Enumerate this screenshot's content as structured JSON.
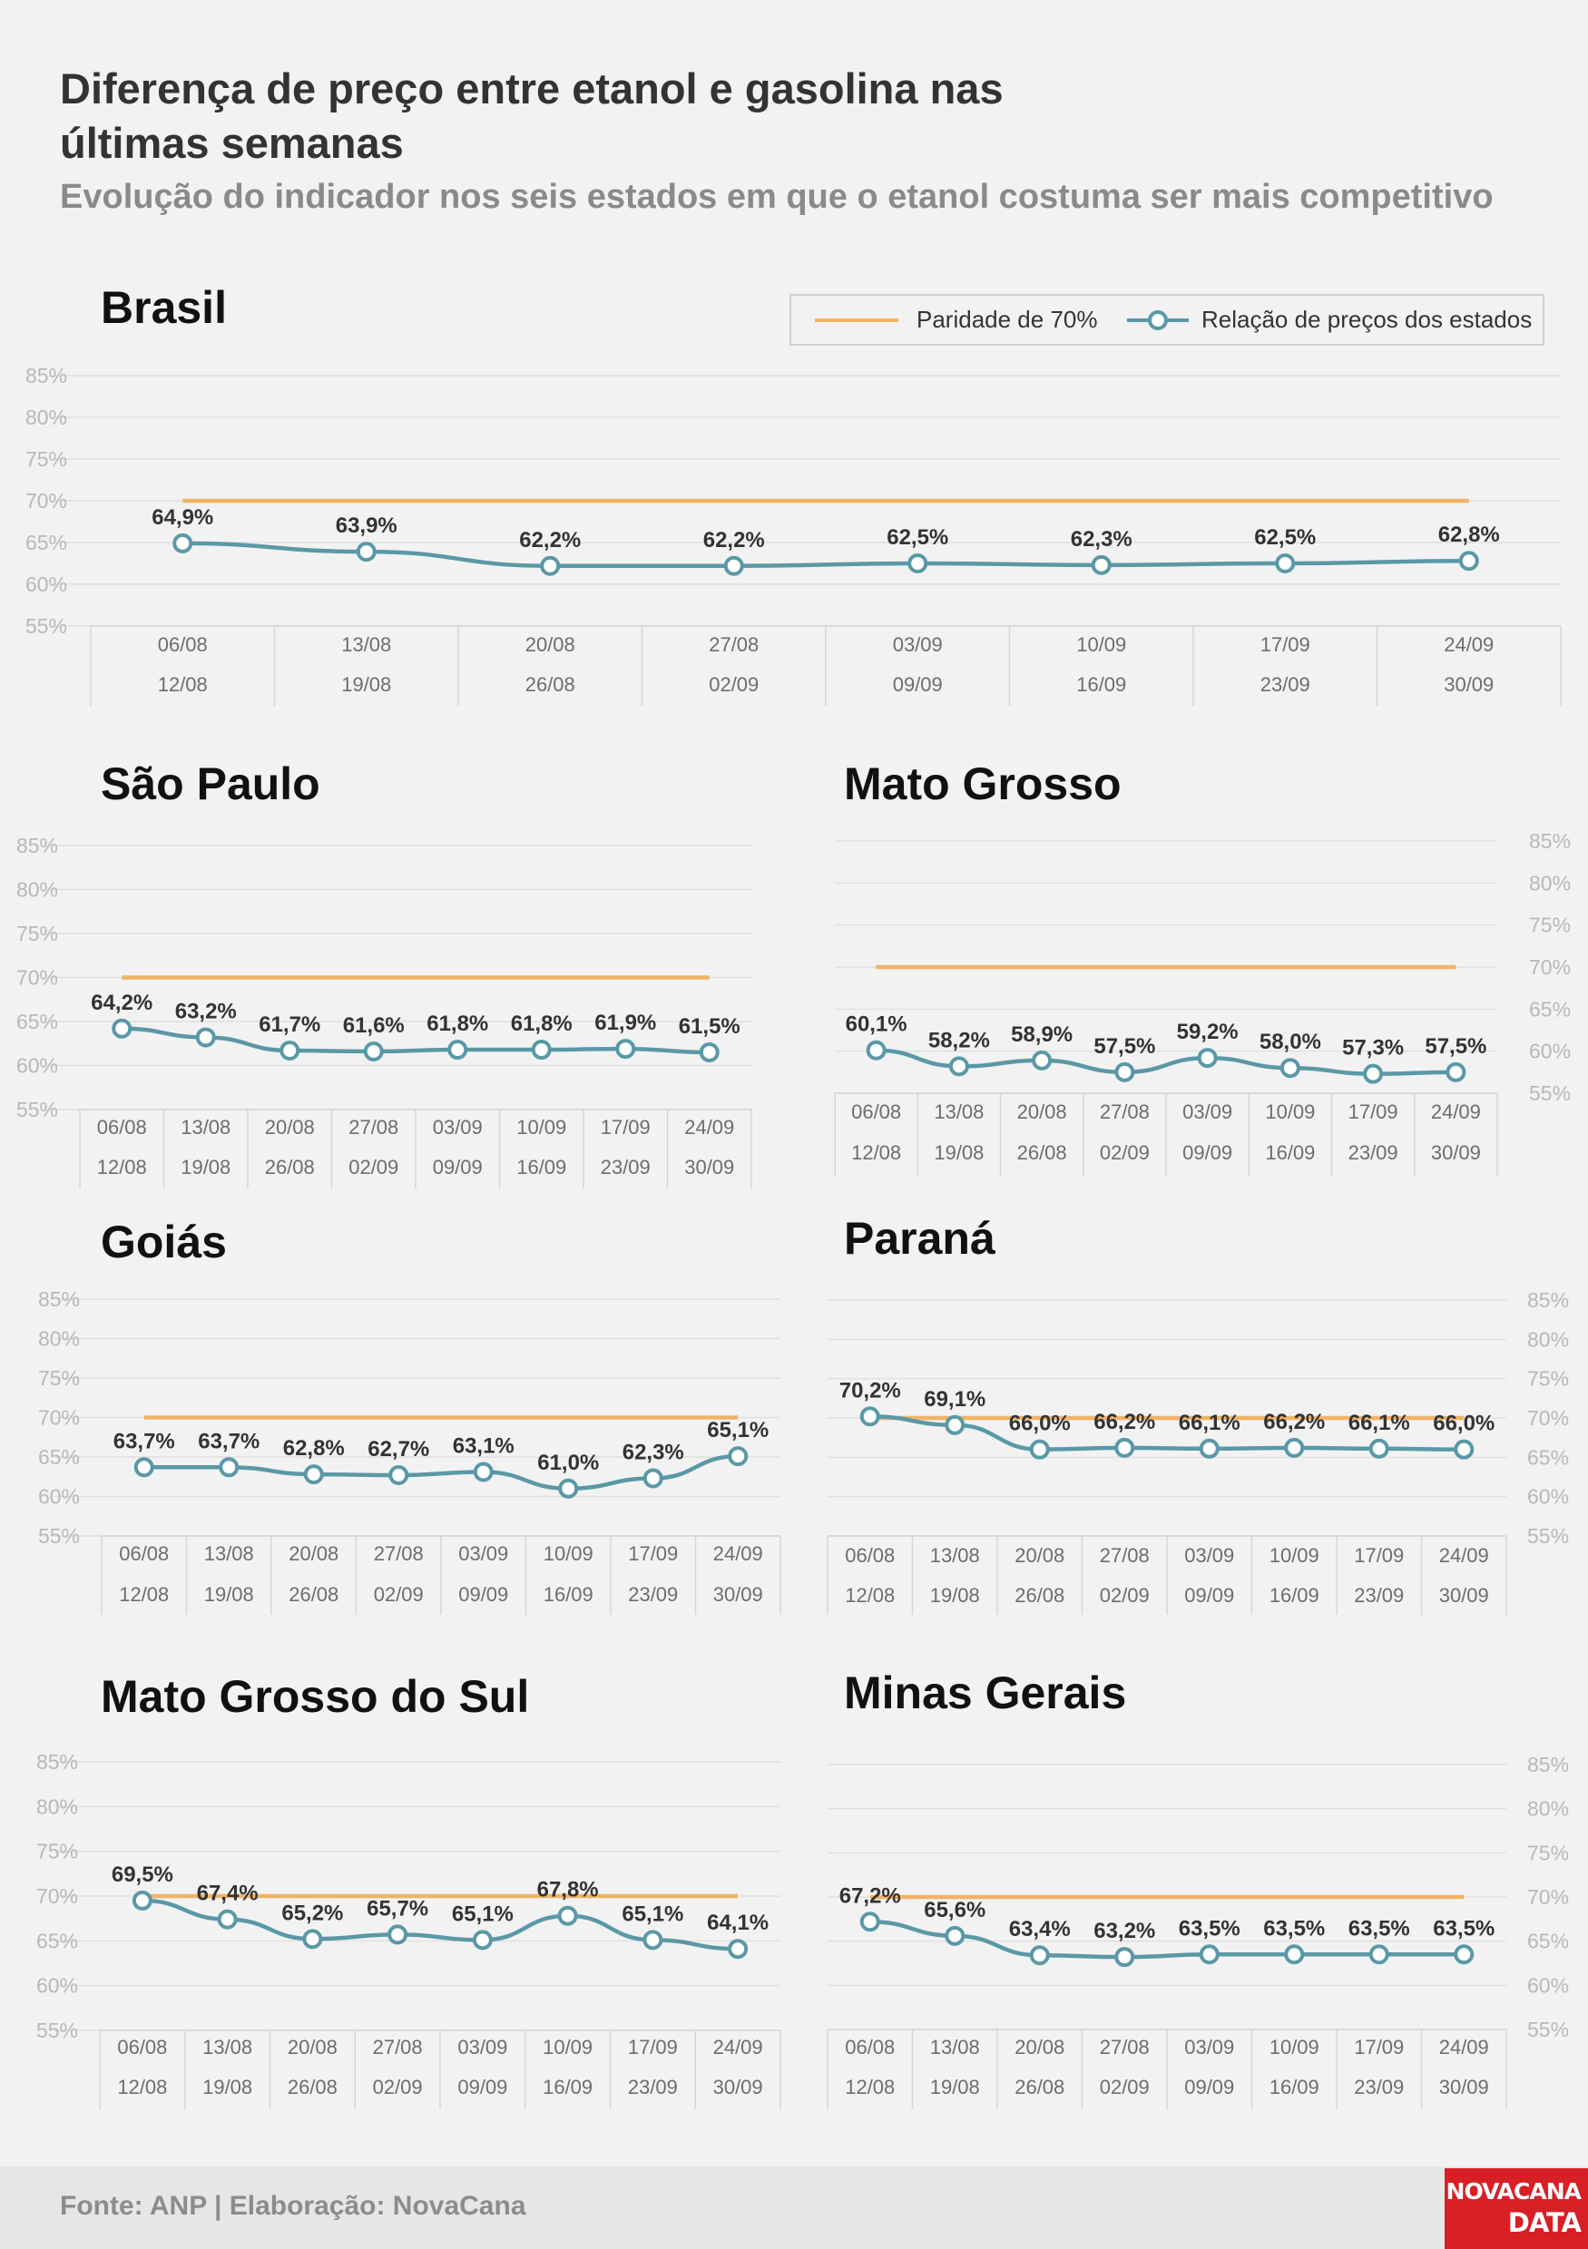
{
  "header": {
    "title_line1": "Diferença de preço entre etanol e gasolina nas",
    "title_line2": "últimas semanas",
    "subtitle": "Evolução do indicador nos seis estados em que o etanol costuma ser mais competitivo"
  },
  "legend": {
    "parity_label": "Paridade de 70%",
    "ratio_label": "Relação de preços dos estados"
  },
  "colors": {
    "parity_line": "#f0b366",
    "ratio_line": "#5a98a6",
    "background": "#f2f2f2",
    "grid": "#e0e0e0",
    "tick_text": "#b8b8b8",
    "label_text": "#333333",
    "footer_bg": "#e6e6e6",
    "logo_bg": "#d81f26"
  },
  "chart_data": [
    {
      "type": "line",
      "title": "Brasil",
      "categories": [
        [
          "06/08",
          "12/08"
        ],
        [
          "13/08",
          "19/08"
        ],
        [
          "20/08",
          "26/08"
        ],
        [
          "27/08",
          "02/09"
        ],
        [
          "03/09",
          "09/09"
        ],
        [
          "10/09",
          "16/09"
        ],
        [
          "17/09",
          "23/09"
        ],
        [
          "24/09",
          "30/09"
        ]
      ],
      "yticks": [
        "85%",
        "80%",
        "75%",
        "70%",
        "65%",
        "60%",
        "55%"
      ],
      "ylim": [
        55,
        85
      ],
      "y_axis_side": "left",
      "series": [
        {
          "name": "Paridade de 70%",
          "values": [
            70,
            70,
            70,
            70,
            70,
            70,
            70,
            70
          ]
        },
        {
          "name": "Relação de preços dos estados",
          "values": [
            64.9,
            63.9,
            62.2,
            62.2,
            62.5,
            62.3,
            62.5,
            62.8
          ],
          "labels": [
            "64,9%",
            "63,9%",
            "62,2%",
            "62,2%",
            "62,5%",
            "62,3%",
            "62,5%",
            "62,8%"
          ]
        }
      ]
    },
    {
      "type": "line",
      "title": "São Paulo",
      "categories": [
        [
          "06/08",
          "12/08"
        ],
        [
          "13/08",
          "19/08"
        ],
        [
          "20/08",
          "26/08"
        ],
        [
          "27/08",
          "02/09"
        ],
        [
          "03/09",
          "09/09"
        ],
        [
          "10/09",
          "16/09"
        ],
        [
          "17/09",
          "23/09"
        ],
        [
          "24/09",
          "30/09"
        ]
      ],
      "yticks": [
        "85%",
        "80%",
        "75%",
        "70%",
        "65%",
        "60%",
        "55%"
      ],
      "ylim": [
        55,
        85
      ],
      "y_axis_side": "left",
      "series": [
        {
          "name": "Paridade de 70%",
          "values": [
            70,
            70,
            70,
            70,
            70,
            70,
            70,
            70
          ]
        },
        {
          "name": "Relação de preços dos estados",
          "values": [
            64.2,
            63.2,
            61.7,
            61.6,
            61.8,
            61.8,
            61.9,
            61.5
          ],
          "labels": [
            "64,2%",
            "63,2%",
            "61,7%",
            "61,6%",
            "61,8%",
            "61,8%",
            "61,9%",
            "61,5%"
          ]
        }
      ]
    },
    {
      "type": "line",
      "title": "Mato Grosso",
      "categories": [
        [
          "06/08",
          "12/08"
        ],
        [
          "13/08",
          "19/08"
        ],
        [
          "20/08",
          "26/08"
        ],
        [
          "27/08",
          "02/09"
        ],
        [
          "03/09",
          "09/09"
        ],
        [
          "10/09",
          "16/09"
        ],
        [
          "17/09",
          "23/09"
        ],
        [
          "24/09",
          "30/09"
        ]
      ],
      "yticks": [
        "85%",
        "80%",
        "75%",
        "70%",
        "65%",
        "60%",
        "55%"
      ],
      "ylim": [
        55,
        85
      ],
      "y_axis_side": "right",
      "series": [
        {
          "name": "Paridade de 70%",
          "values": [
            70,
            70,
            70,
            70,
            70,
            70,
            70,
            70
          ]
        },
        {
          "name": "Relação de preços dos estados",
          "values": [
            60.1,
            58.2,
            58.9,
            57.5,
            59.2,
            58.0,
            57.3,
            57.5
          ],
          "labels": [
            "60,1%",
            "58,2%",
            "58,9%",
            "57,5%",
            "59,2%",
            "58,0%",
            "57,3%",
            "57,5%"
          ]
        }
      ]
    },
    {
      "type": "line",
      "title": "Goiás",
      "categories": [
        [
          "06/08",
          "12/08"
        ],
        [
          "13/08",
          "19/08"
        ],
        [
          "20/08",
          "26/08"
        ],
        [
          "27/08",
          "02/09"
        ],
        [
          "03/09",
          "09/09"
        ],
        [
          "10/09",
          "16/09"
        ],
        [
          "17/09",
          "23/09"
        ],
        [
          "24/09",
          "30/09"
        ]
      ],
      "yticks": [
        "85%",
        "80%",
        "75%",
        "70%",
        "65%",
        "60%",
        "55%"
      ],
      "ylim": [
        55,
        85
      ],
      "y_axis_side": "left",
      "series": [
        {
          "name": "Paridade de 70%",
          "values": [
            70,
            70,
            70,
            70,
            70,
            70,
            70,
            70
          ]
        },
        {
          "name": "Relação de preços dos estados",
          "values": [
            63.7,
            63.7,
            62.8,
            62.7,
            63.1,
            61.0,
            62.3,
            65.1
          ],
          "labels": [
            "63,7%",
            "63,7%",
            "62,8%",
            "62,7%",
            "63,1%",
            "61,0%",
            "62,3%",
            "65,1%"
          ]
        }
      ]
    },
    {
      "type": "line",
      "title": "Paraná",
      "categories": [
        [
          "06/08",
          "12/08"
        ],
        [
          "13/08",
          "19/08"
        ],
        [
          "20/08",
          "26/08"
        ],
        [
          "27/08",
          "02/09"
        ],
        [
          "03/09",
          "09/09"
        ],
        [
          "10/09",
          "16/09"
        ],
        [
          "17/09",
          "23/09"
        ],
        [
          "24/09",
          "30/09"
        ]
      ],
      "yticks": [
        "85%",
        "80%",
        "75%",
        "70%",
        "65%",
        "60%",
        "55%"
      ],
      "ylim": [
        55,
        85
      ],
      "y_axis_side": "right",
      "series": [
        {
          "name": "Paridade de 70%",
          "values": [
            70,
            70,
            70,
            70,
            70,
            70,
            70,
            70
          ]
        },
        {
          "name": "Relação de preços dos estados",
          "values": [
            70.2,
            69.1,
            66.0,
            66.2,
            66.1,
            66.2,
            66.1,
            66.0
          ],
          "labels": [
            "70,2%",
            "69,1%",
            "66,0%",
            "66,2%",
            "66,1%",
            "66,2%",
            "66,1%",
            "66,0%"
          ]
        }
      ]
    },
    {
      "type": "line",
      "title": "Mato Grosso do Sul",
      "categories": [
        [
          "06/08",
          "12/08"
        ],
        [
          "13/08",
          "19/08"
        ],
        [
          "20/08",
          "26/08"
        ],
        [
          "27/08",
          "02/09"
        ],
        [
          "03/09",
          "09/09"
        ],
        [
          "10/09",
          "16/09"
        ],
        [
          "17/09",
          "23/09"
        ],
        [
          "24/09",
          "30/09"
        ]
      ],
      "yticks": [
        "85%",
        "80%",
        "75%",
        "70%",
        "65%",
        "60%",
        "55%"
      ],
      "ylim": [
        55,
        85
      ],
      "y_axis_side": "left",
      "series": [
        {
          "name": "Paridade de 70%",
          "values": [
            70,
            70,
            70,
            70,
            70,
            70,
            70,
            70
          ]
        },
        {
          "name": "Relação de preços dos estados",
          "values": [
            69.5,
            67.4,
            65.2,
            65.7,
            65.1,
            67.8,
            65.1,
            64.1
          ],
          "labels": [
            "69,5%",
            "67,4%",
            "65,2%",
            "65,7%",
            "65,1%",
            "67,8%",
            "65,1%",
            "64,1%"
          ]
        }
      ]
    },
    {
      "type": "line",
      "title": "Minas Gerais",
      "categories": [
        [
          "06/08",
          "12/08"
        ],
        [
          "13/08",
          "19/08"
        ],
        [
          "20/08",
          "26/08"
        ],
        [
          "27/08",
          "02/09"
        ],
        [
          "03/09",
          "09/09"
        ],
        [
          "10/09",
          "16/09"
        ],
        [
          "17/09",
          "23/09"
        ],
        [
          "24/09",
          "30/09"
        ]
      ],
      "yticks": [
        "85%",
        "80%",
        "75%",
        "70%",
        "65%",
        "60%",
        "55%"
      ],
      "ylim": [
        55,
        85
      ],
      "y_axis_side": "right",
      "series": [
        {
          "name": "Paridade de 70%",
          "values": [
            70,
            70,
            70,
            70,
            70,
            70,
            70,
            70
          ]
        },
        {
          "name": "Relação de preços dos estados",
          "values": [
            67.2,
            65.6,
            63.4,
            63.2,
            63.5,
            63.5,
            63.5,
            63.5
          ],
          "labels": [
            "67,2%",
            "65,6%",
            "63,4%",
            "63,2%",
            "63,5%",
            "63,5%",
            "63,5%",
            "63,5%"
          ]
        }
      ]
    }
  ],
  "footer": {
    "source": "Fonte: ANP | Elaboração: NovaCana",
    "logo_line1": "NOVACANA",
    "logo_line2": "DATA"
  }
}
